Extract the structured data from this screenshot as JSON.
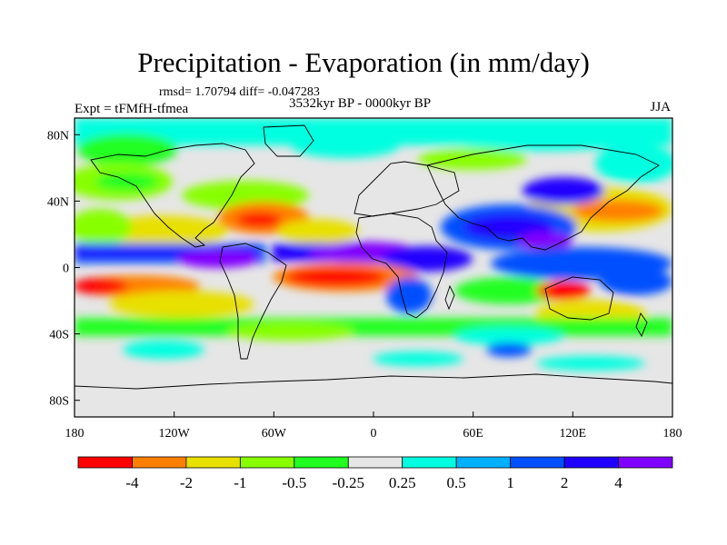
{
  "title": "Precipitation - Evaporation (in mm/day)",
  "stats": "rmsd= 1.70794 diff= -0.047283",
  "expt": "Expt = tFMfH-tfmea",
  "period": "3532kyr BP - 0000kyr BP",
  "season": "JJA",
  "lat_labels": [
    "80N",
    "40N",
    "0",
    "40S",
    "80S"
  ],
  "lat_values": [
    80,
    40,
    0,
    -40,
    -80
  ],
  "lon_labels": [
    "180",
    "120W",
    "60W",
    "0",
    "60E",
    "120E",
    "180"
  ],
  "lon_values": [
    -180,
    -120,
    -60,
    0,
    60,
    120,
    180
  ],
  "lat_range": [
    -90,
    90
  ],
  "lon_range": [
    -180,
    180
  ],
  "colorbar": {
    "levels": [
      "-4",
      "-2",
      "-1",
      "-0.5",
      "-0.25",
      "0.25",
      "0.5",
      "1",
      "2",
      "4"
    ],
    "colors": [
      "#ff0000",
      "#ff8000",
      "#e8e000",
      "#88ff00",
      "#20ff20",
      "#e6e6e6",
      "#00ffe0",
      "#00b0ff",
      "#0050ff",
      "#2000ff",
      "#8000ff"
    ]
  }
}
